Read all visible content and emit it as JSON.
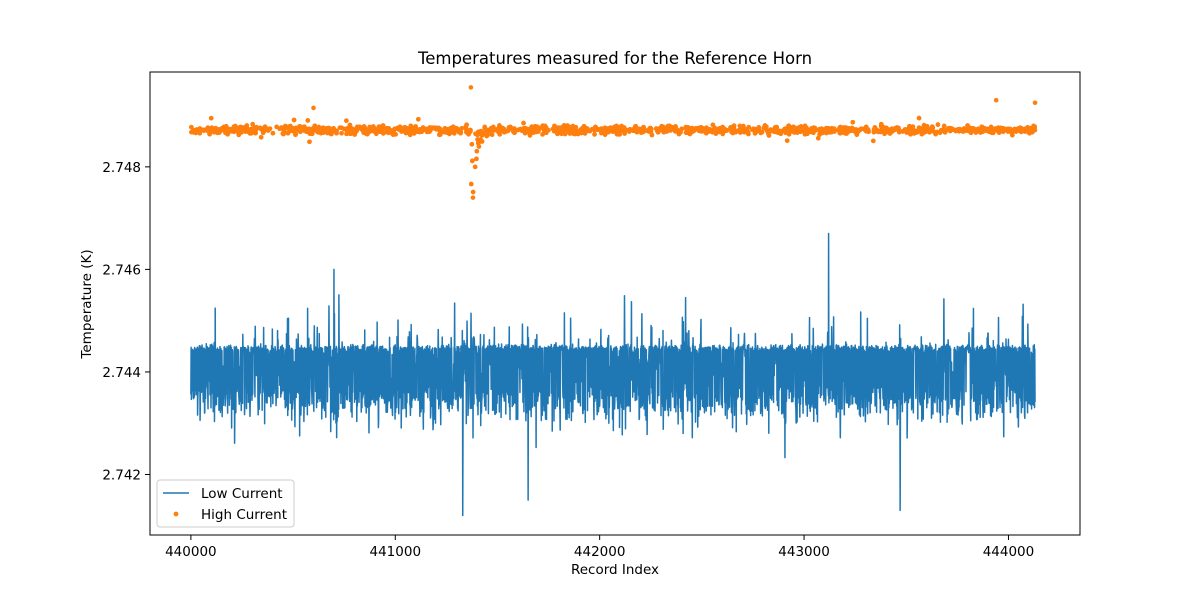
{
  "chart_data": {
    "type": "line",
    "title": "Temperatures measured for the Reference Horn",
    "xlabel": "Record Index",
    "ylabel": "Temperature (K)",
    "xlim": [
      439800,
      444350
    ],
    "ylim": [
      2.74082,
      2.74985
    ],
    "xticks": [
      440000,
      441000,
      442000,
      443000,
      444000
    ],
    "xtick_labels": [
      "440000",
      "441000",
      "442000",
      "443000",
      "444000"
    ],
    "yticks": [
      2.742,
      2.744,
      2.746,
      2.748
    ],
    "ytick_labels": [
      "2.742",
      "2.744",
      "2.746",
      "2.748"
    ],
    "x_range": [
      440000,
      444130
    ],
    "series": [
      {
        "name": "Low Current",
        "style": "line",
        "color": "#1f77b4",
        "baseline": 2.744,
        "typical_range": [
          2.7433,
          2.7445
        ],
        "extremes": [
          {
            "x": 441330,
            "y": 2.7412
          },
          {
            "x": 443120,
            "y": 2.7467
          },
          {
            "x": 443470,
            "y": 2.7413
          },
          {
            "x": 440700,
            "y": 2.746
          },
          {
            "x": 441650,
            "y": 2.7415
          }
        ]
      },
      {
        "name": "High Current",
        "style": "scatter",
        "color": "#ff7f0e",
        "baseline": 2.74872,
        "typical_range": [
          2.7486,
          2.7489
        ],
        "dip": {
          "x": 441380,
          "y": 2.7474
        },
        "spike": {
          "x": 441370,
          "y": 2.74955
        }
      }
    ],
    "legend": {
      "position": "lower-left",
      "entries": [
        "Low Current",
        "High Current"
      ]
    }
  }
}
